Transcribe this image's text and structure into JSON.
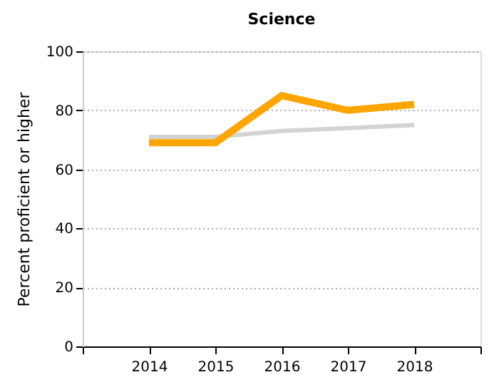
{
  "chart_data": {
    "type": "line",
    "title": "Science",
    "ylabel": "Percent proficient or higher",
    "x": [
      2014,
      2015,
      2016,
      2017,
      2018
    ],
    "series": [
      {
        "color": "#d3d3d3",
        "values": [
          71,
          71,
          73,
          74,
          75
        ]
      },
      {
        "color": "#ffa500",
        "values": [
          69,
          69,
          85,
          80,
          82
        ]
      }
    ],
    "xlim": [
      2013,
      2019
    ],
    "xticks": [
      {
        "value": 2013,
        "label": null
      },
      2014,
      2015,
      2016,
      2017,
      2018,
      {
        "value": 2019,
        "label": null
      }
    ],
    "ylim": [
      0,
      100
    ],
    "yticks": [
      0,
      20,
      40,
      60,
      80,
      100
    ],
    "grid": "y",
    "marker": "none",
    "line_style": "solid"
  }
}
